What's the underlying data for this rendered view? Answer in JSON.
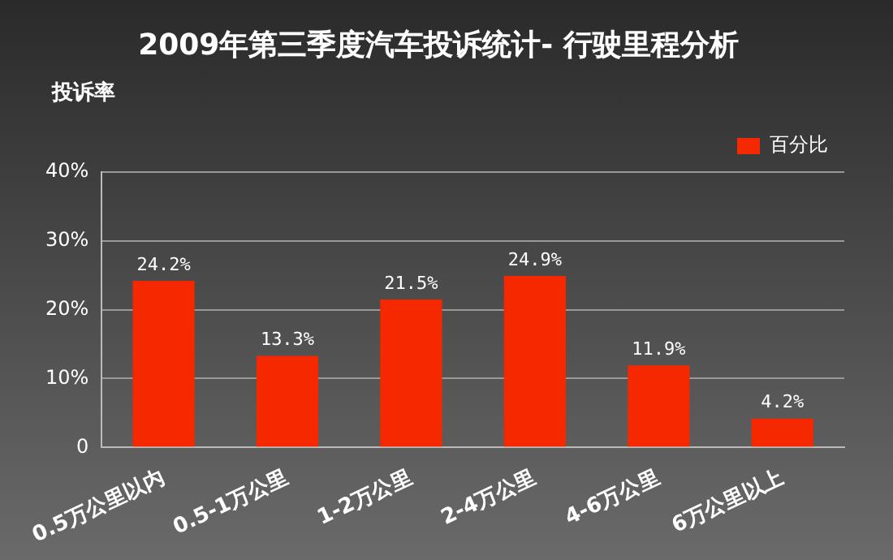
{
  "chart_data": {
    "type": "bar",
    "title": "2009年第三季度汽车投诉统计- 行驶里程分析",
    "ylabel": "投诉率",
    "categories": [
      "0.5万公里以内",
      "0.5-1万公里",
      "1-2万公里",
      "2-4万公里",
      "4-6万公里",
      "6万公里以上"
    ],
    "series": [
      {
        "name": "百分比",
        "color": "#f52800",
        "values": [
          24.2,
          13.3,
          21.5,
          24.9,
          11.9,
          4.2
        ],
        "value_labels": [
          "24.2%",
          "13.3%",
          "21.5%",
          "24.9%",
          "11.9%",
          "4.2%"
        ]
      }
    ],
    "ylim": [
      0,
      40
    ],
    "yticks": [
      {
        "value": 0,
        "label": "0"
      },
      {
        "value": 10,
        "label": "10%"
      },
      {
        "value": 20,
        "label": "20%"
      },
      {
        "value": 30,
        "label": "30%"
      },
      {
        "value": 40,
        "label": "40%"
      }
    ],
    "grid": "y",
    "legend": "top right"
  }
}
